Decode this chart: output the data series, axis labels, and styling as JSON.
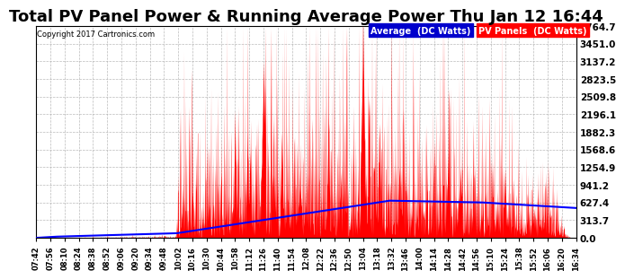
{
  "title": "Total PV Panel Power & Running Average Power Thu Jan 12 16:44",
  "copyright": "Copyright 2017 Cartronics.com",
  "legend_avg": "Average  (DC Watts)",
  "legend_pv": "PV Panels  (DC Watts)",
  "yticks": [
    0.0,
    313.7,
    627.4,
    941.2,
    1254.9,
    1568.6,
    1882.3,
    2196.1,
    2509.8,
    2823.5,
    3137.2,
    3451.0,
    3764.7
  ],
  "ymax": 3764.7,
  "bg_color": "#ffffff",
  "plot_bg_color": "#ffffff",
  "grid_color": "#aaaaaa",
  "fill_color": "#ff0000",
  "avg_color": "#0000ff",
  "title_fontsize": 13,
  "xtick_labels": [
    "07:42",
    "07:56",
    "08:10",
    "08:24",
    "08:38",
    "08:52",
    "09:06",
    "09:20",
    "09:34",
    "09:48",
    "10:02",
    "10:16",
    "10:30",
    "10:44",
    "10:58",
    "11:12",
    "11:26",
    "11:40",
    "11:54",
    "12:08",
    "12:22",
    "12:36",
    "12:50",
    "13:04",
    "13:18",
    "13:32",
    "13:46",
    "14:00",
    "14:14",
    "14:28",
    "14:42",
    "14:56",
    "15:10",
    "15:24",
    "15:38",
    "15:52",
    "16:06",
    "16:20",
    "16:34"
  ]
}
